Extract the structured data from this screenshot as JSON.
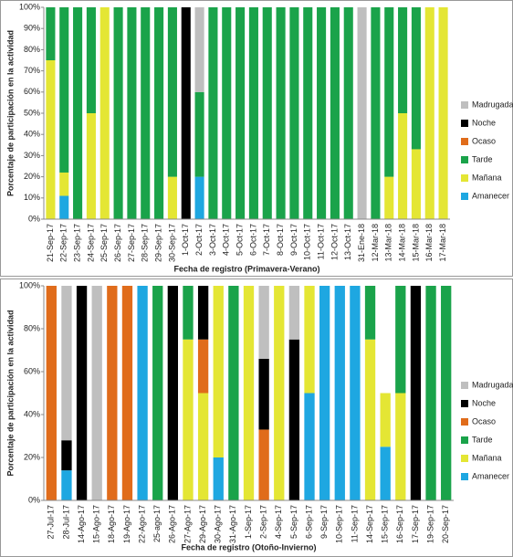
{
  "chart_data": [
    {
      "type": "stacked_bar",
      "xlabel": "Fecha de registro (Primavera-Verano)",
      "ylabel": "Porcentaje de participación en la actividad",
      "categories": [
        "21-Sep-17",
        "22-Sep-17",
        "23-Sep-17",
        "24-Sep-17",
        "25-Sep-17",
        "26-Sep-17",
        "27-Sep-17",
        "28-Sep-17",
        "29-Sep-17",
        "30-Sep-17",
        "1-Oct-17",
        "2-Oct-17",
        "3-Oct-17",
        "4-Oct-17",
        "5-Oct-17",
        "6-Oct-17",
        "7-Oct-17",
        "8-Oct-17",
        "9-Oct-17",
        "10-Oct-17",
        "11-Oct-17",
        "12-Oct-17",
        "13-Oct-17",
        "31-Ene-18",
        "12-Mar-18",
        "13-Mar-18",
        "14-Mar-18",
        "15-Mar-18",
        "16-Mar-18",
        "17-Mar-18"
      ],
      "series": [
        {
          "name": "Amanecer",
          "color": "#1ea7e1",
          "values": [
            0,
            11,
            0,
            0,
            0,
            0,
            0,
            0,
            0,
            0,
            0,
            20,
            0,
            0,
            0,
            0,
            0,
            0,
            0,
            0,
            0,
            0,
            0,
            0,
            0,
            0,
            0,
            0,
            0,
            0
          ]
        },
        {
          "name": "Mañana",
          "color": "#e4e634",
          "values": [
            75,
            11,
            0,
            50,
            100,
            0,
            0,
            0,
            0,
            20,
            0,
            0,
            0,
            0,
            0,
            0,
            0,
            0,
            0,
            0,
            0,
            0,
            0,
            0,
            0,
            20,
            50,
            33,
            100,
            100
          ]
        },
        {
          "name": "Tarde",
          "color": "#1aa34a",
          "values": [
            25,
            78,
            100,
            50,
            0,
            100,
            100,
            100,
            100,
            80,
            0,
            40,
            100,
            100,
            100,
            100,
            100,
            100,
            100,
            100,
            100,
            100,
            100,
            0,
            100,
            80,
            50,
            67,
            0,
            0
          ]
        },
        {
          "name": "Ocaso",
          "color": "#e06c1b",
          "values": [
            0,
            0,
            0,
            0,
            0,
            0,
            0,
            0,
            0,
            0,
            0,
            0,
            0,
            0,
            0,
            0,
            0,
            0,
            0,
            0,
            0,
            0,
            0,
            0,
            0,
            0,
            0,
            0,
            0,
            0
          ]
        },
        {
          "name": "Noche",
          "color": "#000000",
          "values": [
            0,
            0,
            0,
            0,
            0,
            0,
            0,
            0,
            0,
            0,
            100,
            0,
            0,
            0,
            0,
            0,
            0,
            0,
            0,
            0,
            0,
            0,
            0,
            0,
            0,
            0,
            0,
            0,
            0,
            0
          ]
        },
        {
          "name": "Madrugada",
          "color": "#bfbfbf",
          "values": [
            0,
            0,
            0,
            0,
            0,
            0,
            0,
            0,
            0,
            0,
            0,
            40,
            0,
            0,
            0,
            0,
            0,
            0,
            0,
            0,
            0,
            0,
            0,
            100,
            0,
            0,
            0,
            0,
            0,
            0
          ]
        }
      ],
      "ylim": [
        0,
        100
      ],
      "yticks": [
        {
          "value": 0,
          "label": "0%"
        },
        {
          "value": 10,
          "label": "10%"
        },
        {
          "value": 20,
          "label": "20%"
        },
        {
          "value": 30,
          "label": "30%"
        },
        {
          "value": 40,
          "label": "40%"
        },
        {
          "value": 50,
          "label": "50%"
        },
        {
          "value": 60,
          "label": "60%"
        },
        {
          "value": 70,
          "label": "70%"
        },
        {
          "value": 80,
          "label": "80%"
        },
        {
          "value": 90,
          "label": "90%"
        },
        {
          "value": 100,
          "label": "100%"
        }
      ],
      "legend": "right"
    },
    {
      "type": "stacked_bar",
      "xlabel": "Fecha de registro (Otoño-Invierno)",
      "ylabel": "Porcentaje de participación en la actividad",
      "categories": [
        "27-Jul-17",
        "28-Jul-17",
        "14-Ago-17",
        "15-Ago-17",
        "18-Ago-17",
        "19-Ago-17",
        "22-Ago-17",
        "25-ago-17",
        "26-Ago-17",
        "27-Ago-17",
        "29-Ago-17",
        "30-Ago-17",
        "31-Ago-17",
        "1-Sep-17",
        "2-Sep-17",
        "4-Sep-17",
        "5-Sep-17",
        "6-Sep-17",
        "9-Sep-17",
        "10-Sep-17",
        "11-Sep-17",
        "14-Sep-17",
        "15-Sep-17",
        "16-Sep-17",
        "17-Sep-17",
        "19-Sep-17",
        "20-Sep-17"
      ],
      "series": [
        {
          "name": "Amanecer",
          "color": "#1ea7e1",
          "values": [
            0,
            14,
            0,
            0,
            0,
            0,
            100,
            0,
            0,
            0,
            0,
            20,
            0,
            0,
            0,
            0,
            0,
            50,
            100,
            100,
            100,
            0,
            25,
            0,
            0,
            0,
            0
          ]
        },
        {
          "name": "Mañana",
          "color": "#e4e634",
          "values": [
            0,
            0,
            0,
            0,
            0,
            0,
            0,
            0,
            0,
            75,
            50,
            80,
            0,
            100,
            0,
            100,
            0,
            50,
            0,
            0,
            0,
            75,
            25,
            50,
            0,
            0,
            0
          ]
        },
        {
          "name": "Tarde",
          "color": "#1aa34a",
          "values": [
            0,
            0,
            0,
            0,
            0,
            0,
            0,
            100,
            0,
            25,
            0,
            0,
            100,
            0,
            0,
            0,
            0,
            0,
            0,
            0,
            0,
            25,
            0,
            50,
            0,
            100,
            100
          ]
        },
        {
          "name": "Ocaso",
          "color": "#e06c1b",
          "values": [
            100,
            0,
            0,
            0,
            100,
            100,
            0,
            0,
            0,
            0,
            25,
            0,
            0,
            0,
            33,
            0,
            0,
            0,
            0,
            0,
            0,
            0,
            0,
            0,
            0,
            0,
            0
          ]
        },
        {
          "name": "Noche",
          "color": "#000000",
          "values": [
            0,
            14,
            100,
            0,
            0,
            0,
            0,
            0,
            100,
            0,
            25,
            0,
            0,
            0,
            33,
            0,
            75,
            0,
            0,
            0,
            0,
            0,
            0,
            0,
            100,
            0,
            0
          ]
        },
        {
          "name": "Madrugada",
          "color": "#bfbfbf",
          "values": [
            0,
            72,
            0,
            100,
            0,
            0,
            0,
            0,
            0,
            0,
            0,
            0,
            0,
            0,
            34,
            0,
            25,
            0,
            0,
            0,
            0,
            0,
            0,
            0,
            0,
            0,
            0
          ]
        }
      ],
      "ylim": [
        0,
        100
      ],
      "yticks": [
        {
          "value": 0,
          "label": "0%"
        },
        {
          "value": 20,
          "label": "20%"
        },
        {
          "value": 40,
          "label": "40%"
        },
        {
          "value": 60,
          "label": "60%"
        },
        {
          "value": 80,
          "label": "80%"
        },
        {
          "value": 100,
          "label": "100%"
        }
      ],
      "legend": "right"
    }
  ]
}
